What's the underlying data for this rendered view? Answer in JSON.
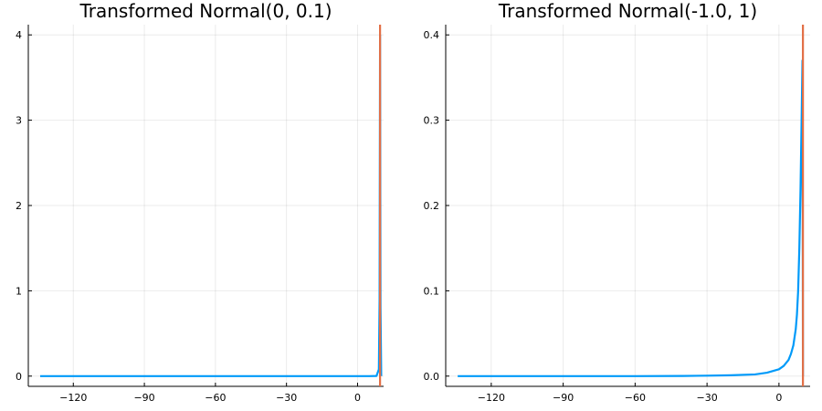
{
  "chart_data": [
    {
      "type": "line",
      "title": "Transformed Normal(0, 0.1)",
      "xlabel": "",
      "ylabel": "",
      "xlim": [
        -139,
        11
      ],
      "ylim": [
        -0.12,
        4.12
      ],
      "xticks": [
        -120,
        -90,
        -60,
        -30,
        0
      ],
      "xtick_labels": [
        "−120",
        "−90",
        "−60",
        "−30",
        "0"
      ],
      "yticks": [
        0,
        1,
        2,
        3,
        4
      ],
      "ytick_labels": [
        "0",
        "1",
        "2",
        "3",
        "4"
      ],
      "grid": true,
      "legend": "none",
      "series": [
        {
          "kind": "density",
          "color": "#009af9",
          "x": [
            -134,
            -120,
            -90,
            -60,
            -30,
            -10,
            0,
            5,
            8,
            9.0,
            9.3,
            9.5,
            9.7,
            10.0
          ],
          "y": [
            0,
            0,
            0,
            0,
            0,
            0,
            0,
            0,
            0.002,
            0.08,
            0.9,
            4.0,
            0.8,
            0
          ]
        },
        {
          "kind": "vline",
          "color": "#e26f46",
          "x": 9.5
        }
      ]
    },
    {
      "type": "line",
      "title": "Transformed Normal(-1.0, 1)",
      "xlabel": "",
      "ylabel": "",
      "xlim": [
        -139,
        13
      ],
      "ylim": [
        -0.012,
        0.412
      ],
      "xticks": [
        -120,
        -90,
        -60,
        -30,
        0
      ],
      "xtick_labels": [
        "−120",
        "−90",
        "−60",
        "−30",
        "0"
      ],
      "yticks": [
        0,
        0.1,
        0.2,
        0.3,
        0.4
      ],
      "ytick_labels": [
        "0.0",
        "0.1",
        "0.2",
        "0.3",
        "0.4"
      ],
      "grid": true,
      "legend": "none",
      "series": [
        {
          "kind": "density",
          "color": "#009af9",
          "x": [
            -134,
            -120,
            -90,
            -60,
            -40,
            -30,
            -20,
            -10,
            -5,
            0,
            2,
            4,
            5,
            6,
            7,
            7.5,
            8,
            8.5,
            9.0,
            9.5,
            9.8,
            10.0
          ],
          "y": [
            0,
            0,
            0,
            0,
            0.0002,
            0.0005,
            0.001,
            0.002,
            0.004,
            0.008,
            0.012,
            0.019,
            0.026,
            0.036,
            0.055,
            0.072,
            0.1,
            0.15,
            0.22,
            0.31,
            0.37,
            0.0
          ]
        },
        {
          "kind": "vline",
          "color": "#e26f46",
          "x": 10.0
        }
      ]
    }
  ]
}
